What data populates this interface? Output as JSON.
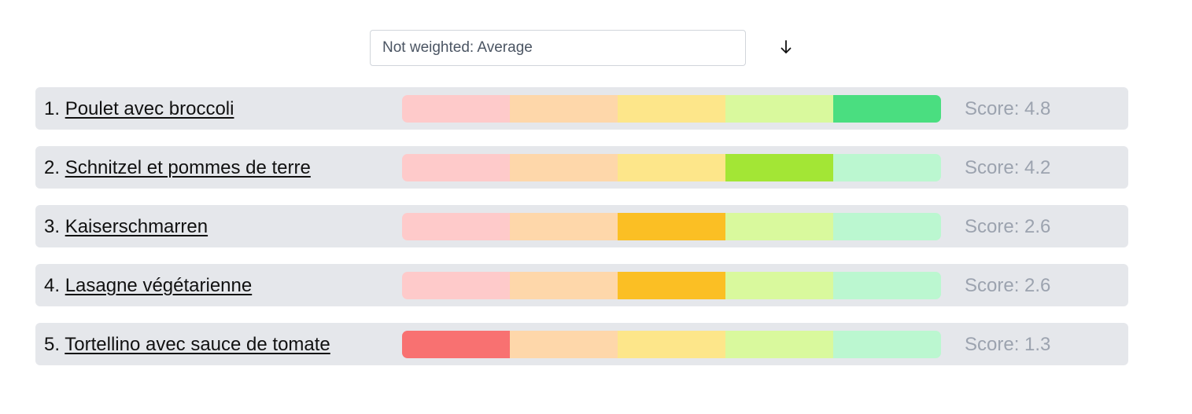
{
  "sort": {
    "selected": "Not weighted: Average",
    "direction_icon": "arrow-down-icon",
    "direction_glyph": "↓"
  },
  "segments": {
    "light": [
      "#fecaca",
      "#fed7aa",
      "#fde68a",
      "#d9f99d",
      "#bbf7d0"
    ],
    "strong": [
      "#f87171",
      "#fb923c",
      "#fbbf24",
      "#a3e635",
      "#4ade80"
    ]
  },
  "items": [
    {
      "rank": "1.",
      "name": "Poulet avec broccoli",
      "score_text": "Score: 4.8",
      "score": 4.8,
      "active_segment": 5
    },
    {
      "rank": "2.",
      "name": "Schnitzel et pommes de terre",
      "score_text": "Score: 4.2",
      "score": 4.2,
      "active_segment": 4
    },
    {
      "rank": "3.",
      "name": "Kaiserschmarren",
      "score_text": "Score: 2.6",
      "score": 2.6,
      "active_segment": 3
    },
    {
      "rank": "4.",
      "name": "Lasagne végétarienne",
      "score_text": "Score: 2.6",
      "score": 2.6,
      "active_segment": 3
    },
    {
      "rank": "5.",
      "name": "Tortellino avec sauce de tomate",
      "score_text": "Score: 1.3",
      "score": 1.3,
      "active_segment": 1
    }
  ]
}
